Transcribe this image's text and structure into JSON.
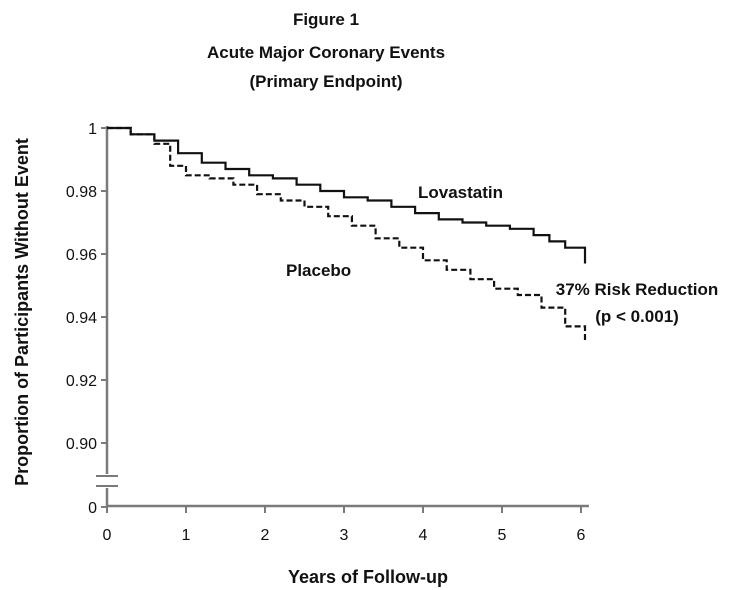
{
  "chart_data": {
    "type": "line",
    "title": "Figure 1",
    "subtitle_lines": [
      "Acute Major Coronary Events",
      "(Primary Endpoint)"
    ],
    "xlabel": "Years of Follow-up",
    "ylabel": "Proportion of Participants Without Event",
    "xlim": [
      0,
      6.1
    ],
    "ylim": [
      0.895,
      1.0
    ],
    "y_axis_break": true,
    "x_ticks": [
      "0",
      "1",
      "2",
      "3",
      "4",
      "5",
      "6"
    ],
    "y_ticks": [
      {
        "value": 1.0,
        "label": "1"
      },
      {
        "value": 0.98,
        "label": "0.98"
      },
      {
        "value": 0.96,
        "label": "0.96"
      },
      {
        "value": 0.94,
        "label": "0.94"
      },
      {
        "value": 0.92,
        "label": "0.92"
      },
      {
        "value": 0.9,
        "label": "0.90"
      }
    ],
    "y_zero_label": "0",
    "grid": false,
    "series": [
      {
        "name": "Lovastatin",
        "line_style": "solid",
        "x": [
          0,
          0.3,
          0.6,
          0.9,
          1.2,
          1.5,
          1.8,
          2.1,
          2.4,
          2.7,
          3.0,
          3.3,
          3.6,
          3.9,
          4.2,
          4.5,
          4.8,
          5.1,
          5.4,
          5.6,
          5.8,
          6.0,
          6.05,
          6.05
        ],
        "values": [
          1.0,
          0.998,
          0.996,
          0.992,
          0.989,
          0.987,
          0.985,
          0.984,
          0.982,
          0.98,
          0.978,
          0.977,
          0.975,
          0.973,
          0.971,
          0.97,
          0.969,
          0.968,
          0.966,
          0.964,
          0.962,
          0.962,
          0.961,
          0.957
        ]
      },
      {
        "name": "Placebo",
        "line_style": "dashed",
        "x": [
          0,
          0.3,
          0.6,
          0.8,
          1.0,
          1.3,
          1.6,
          1.9,
          2.2,
          2.5,
          2.8,
          3.1,
          3.4,
          3.7,
          4.0,
          4.3,
          4.6,
          4.9,
          5.2,
          5.5,
          5.8,
          6.05
        ],
        "values": [
          1.0,
          0.998,
          0.995,
          0.988,
          0.985,
          0.984,
          0.982,
          0.979,
          0.977,
          0.975,
          0.972,
          0.969,
          0.965,
          0.962,
          0.958,
          0.955,
          0.952,
          0.949,
          0.947,
          0.943,
          0.937,
          0.932
        ]
      }
    ],
    "annotation_lines": [
      "37% Risk Reduction",
      "(p < 0.001)"
    ]
  },
  "colors": {
    "line": "#111111",
    "axis": "#7a7a7a",
    "text": "#111111"
  }
}
